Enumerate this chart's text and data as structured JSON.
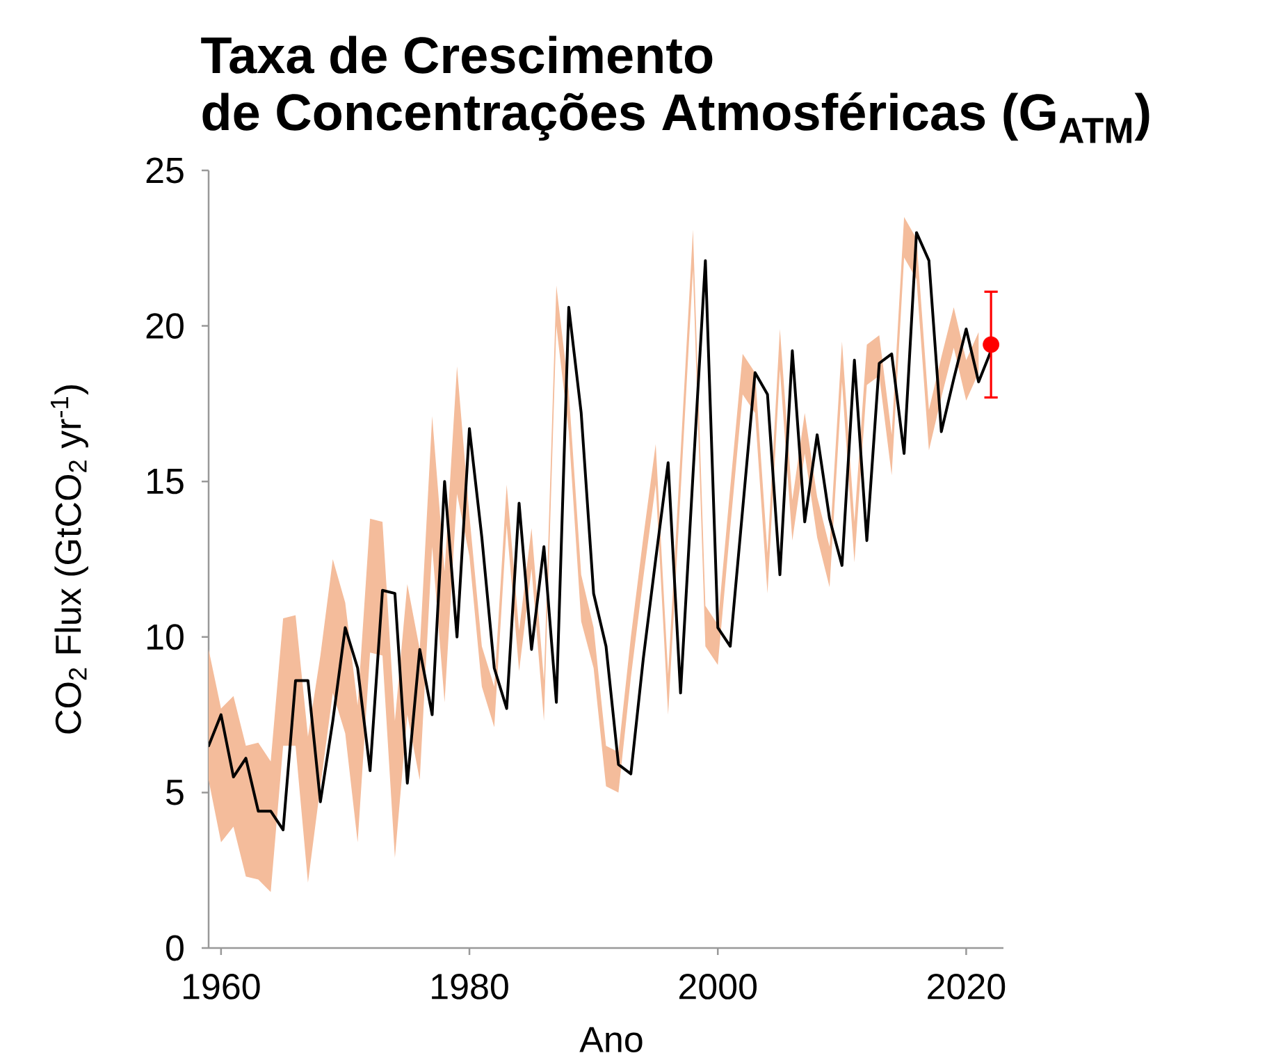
{
  "chart_data": {
    "type": "line",
    "title": "Taxa de Crescimento de Concentrações Atmosféricas (G$_{ATM}$)",
    "xlabel": "Ano",
    "ylabel": "CO$_{2}$ Flux (GtCO$_{2}$ yr$^{-1}$)",
    "xlim": [
      1959,
      2023
    ],
    "ylim": [
      0,
      25
    ],
    "xticks": [
      1960,
      1980,
      2000,
      2020
    ],
    "yticks": [
      0,
      5,
      10,
      15,
      20,
      25
    ],
    "series": [
      {
        "color": "#f4bc9b",
        "x": [
          1959,
          1960,
          1961,
          1962,
          1963,
          1964,
          1965,
          1966,
          1967,
          1968,
          1969,
          1970,
          1971,
          1972,
          1973,
          1974,
          1975,
          1976,
          1977,
          1978,
          1979,
          1980,
          1981,
          1982,
          1983,
          1984,
          1985,
          1986,
          1987,
          1988,
          1989,
          1990,
          1991,
          1992,
          1993,
          1994,
          1995,
          1996,
          1997,
          1998,
          1999,
          2000,
          2001,
          2002,
          2003,
          2004,
          2005,
          2006,
          2007,
          2008,
          2009,
          2010,
          2011,
          2012,
          2013,
          2014,
          2015,
          2016,
          2017,
          2018,
          2019,
          2020,
          2021
        ],
        "values": [
          null,
          null,
          null,
          null,
          null,
          null,
          null,
          null,
          null,
          null,
          null,
          null,
          null,
          null,
          null,
          null,
          null,
          null,
          null,
          null,
          null,
          null,
          null,
          null,
          null,
          null,
          null,
          null,
          null,
          null,
          null,
          null,
          null,
          null,
          null,
          null,
          null,
          null,
          null,
          null,
          null,
          null,
          null,
          null,
          null,
          null,
          null,
          null,
          null,
          null,
          null,
          null,
          null,
          null,
          null,
          null,
          null,
          null,
          null,
          null,
          null,
          null,
          null
        ],
        "lower": [
          5.4,
          3.4,
          3.9,
          2.3,
          2.2,
          1.8,
          6.5,
          6.5,
          2.1,
          5.2,
          8.2,
          6.9,
          3.4,
          9.5,
          9.4,
          2.9,
          7.5,
          5.4,
          12.9,
          7.9,
          14.6,
          12.6,
          8.4,
          7.1,
          13.6,
          8.9,
          12.2,
          7.3,
          20.0,
          16.6,
          10.5,
          9.0,
          5.2,
          5.0,
          8.7,
          11.9,
          14.9,
          7.5,
          14.6,
          21.8,
          9.7,
          9.1,
          13.5,
          17.8,
          17.2,
          11.4,
          18.6,
          13.1,
          15.9,
          13.2,
          11.6,
          18.2,
          12.4,
          18.1,
          18.4,
          15.2,
          22.2,
          21.5,
          16.0,
          17.7,
          19.3,
          17.6,
          18.5
        ],
        "upper": [
          9.6,
          7.7,
          8.1,
          6.5,
          6.6,
          6.0,
          10.6,
          10.7,
          6.8,
          9.4,
          12.5,
          11.1,
          7.8,
          13.8,
          13.7,
          7.3,
          11.7,
          9.6,
          17.1,
          12.1,
          18.7,
          13.9,
          9.7,
          8.4,
          14.9,
          10.2,
          13.5,
          8.6,
          21.3,
          17.9,
          12.0,
          10.3,
          6.5,
          6.3,
          10.0,
          13.2,
          16.2,
          8.8,
          15.9,
          23.1,
          11.0,
          10.4,
          14.8,
          19.1,
          18.5,
          12.7,
          19.9,
          14.4,
          17.2,
          14.5,
          12.9,
          19.5,
          13.7,
          19.4,
          19.7,
          16.5,
          23.5,
          22.8,
          17.3,
          19.0,
          20.6,
          18.9,
          19.8
        ]
      },
      {
        "color": "#000000",
        "x": [
          1959,
          1960,
          1961,
          1962,
          1963,
          1964,
          1965,
          1966,
          1967,
          1968,
          1969,
          1970,
          1971,
          1972,
          1973,
          1974,
          1975,
          1976,
          1977,
          1978,
          1979,
          1980,
          1981,
          1982,
          1983,
          1984,
          1985,
          1986,
          1987,
          1988,
          1989,
          1990,
          1991,
          1992,
          1993,
          1994,
          1995,
          1996,
          1997,
          1998,
          1999,
          2000,
          2001,
          2002,
          2003,
          2004,
          2005,
          2006,
          2007,
          2008,
          2009,
          2010,
          2011,
          2012,
          2013,
          2014,
          2015,
          2016,
          2017,
          2018,
          2019,
          2020,
          2021,
          2022
        ],
        "values": [
          6.5,
          7.5,
          5.5,
          6.1,
          4.4,
          4.4,
          3.8,
          8.6,
          8.6,
          4.7,
          7.3,
          10.3,
          9.0,
          5.7,
          11.5,
          11.4,
          5.3,
          9.6,
          7.5,
          15.0,
          10.0,
          16.7,
          13.2,
          9.0,
          7.7,
          14.3,
          9.6,
          12.9,
          7.9,
          20.6,
          17.2,
          11.4,
          9.7,
          5.9,
          5.6,
          9.3,
          12.5,
          15.6,
          8.2,
          15.2,
          22.1,
          10.3,
          9.7,
          14.1,
          18.5,
          17.8,
          12.0,
          19.2,
          13.7,
          16.5,
          13.8,
          12.3,
          18.9,
          13.1,
          18.8,
          19.1,
          15.9,
          23.0,
          22.1,
          16.6,
          18.3,
          19.9,
          18.2,
          19.2
        ]
      },
      {
        "type": "scatter",
        "color": "#ff0000",
        "x": [
          2022
        ],
        "values": [
          19.4
        ],
        "errors": [
          1.7
        ]
      }
    ]
  }
}
